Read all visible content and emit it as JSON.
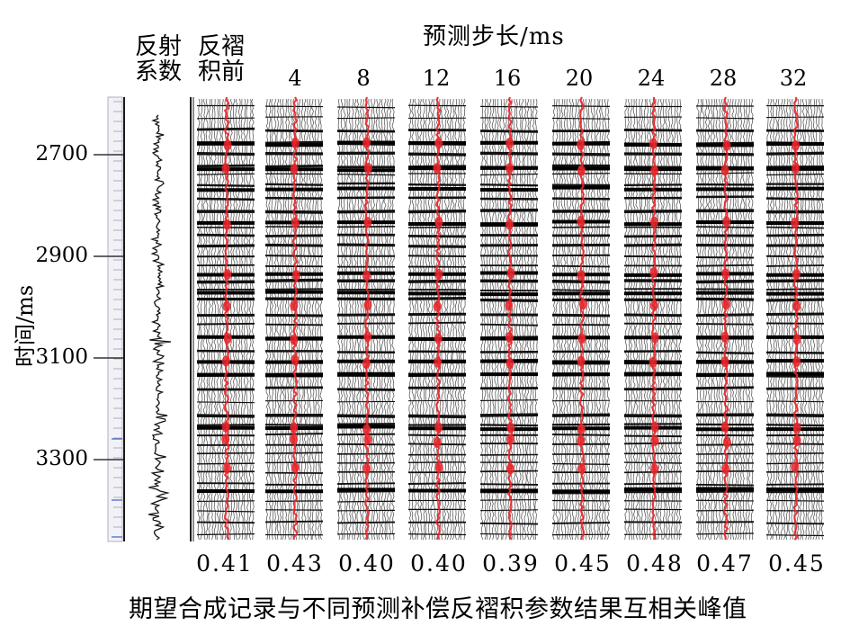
{
  "header": {
    "reflect_coef_line1": "反射",
    "reflect_coef_line2": "系数",
    "pre_decon_line1": "反褶",
    "pre_decon_line2": "积前",
    "step_title": "预测步长/ms",
    "steps": [
      "4",
      "8",
      "12",
      "16",
      "20",
      "24",
      "28",
      "32"
    ]
  },
  "y_axis": {
    "label": "时间/ms",
    "ticks": [
      "2700",
      "2900",
      "3100",
      "3300"
    ]
  },
  "peaks": [
    "0.41",
    "0.43",
    "0.40",
    "0.40",
    "0.39",
    "0.45",
    "0.48",
    "0.47",
    "0.45"
  ],
  "caption": "期望合成记录与不同预测补偿反褶积参数结果互相关峰值",
  "colors": {
    "trace": "#111111",
    "highlight": "#e8262a",
    "frame": "#1a1a1a"
  }
}
